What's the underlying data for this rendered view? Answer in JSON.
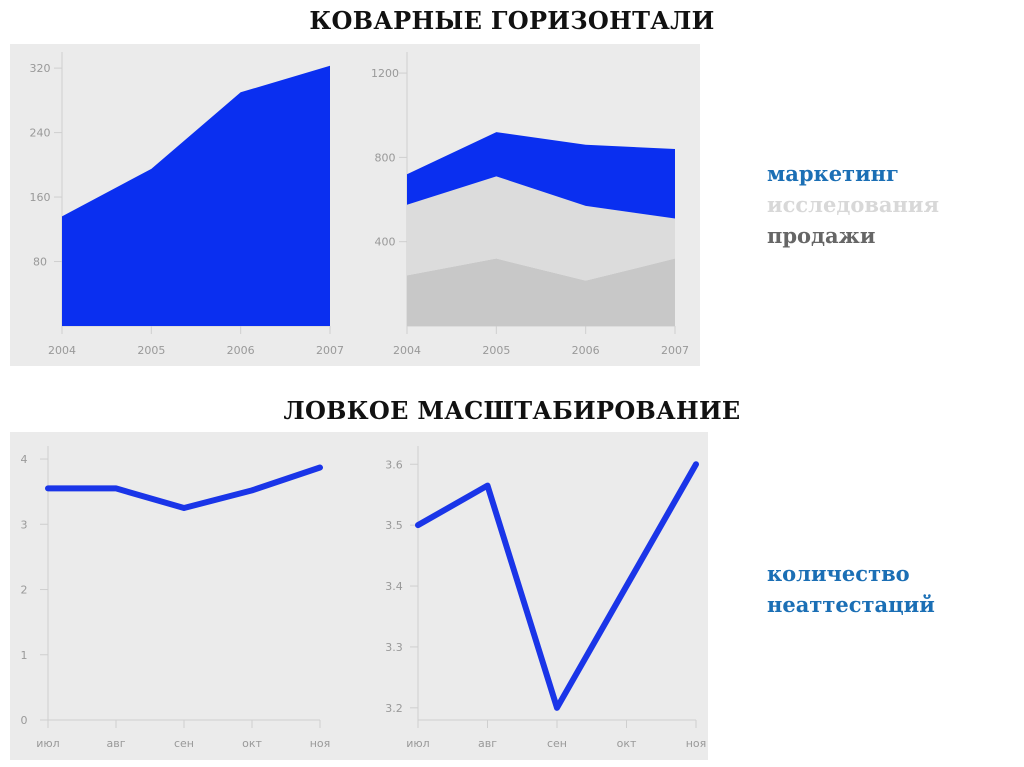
{
  "titles": {
    "top": "КОВАРНЫЕ ГОРИЗОНТАЛИ",
    "bottom": "ЛОВКОЕ МАСШТАБИРОВАНИЕ"
  },
  "legend_top": [
    {
      "label": "маркетинг",
      "color": "#1b6fb5"
    },
    {
      "label": "исследования",
      "color": "#d8d8d8"
    },
    {
      "label": "продажи",
      "color": "#666666"
    }
  ],
  "legend_bottom": [
    {
      "label": "количество",
      "color": "#1b6fb5"
    },
    {
      "label": "неаттестаций",
      "color": "#1b6fb5"
    }
  ],
  "chart_data": [
    {
      "type": "area",
      "categories": [
        "2004",
        "2005",
        "2006",
        "2007"
      ],
      "series": [
        {
          "values": [
            136,
            195,
            290,
            323
          ],
          "color": "#0a2ff0"
        }
      ],
      "ylim": [
        0,
        340
      ],
      "yticks": [
        80,
        160,
        240,
        320
      ],
      "grid": false
    },
    {
      "type": "area",
      "stacked": true,
      "categories": [
        "2004",
        "2005",
        "2006",
        "2007"
      ],
      "series": [
        {
          "name": "продажи",
          "values": [
            240,
            320,
            215,
            320
          ],
          "color": "#c8c8c8"
        },
        {
          "name": "исследования",
          "values": [
            335,
            390,
            355,
            190
          ],
          "color": "#dcdcdc"
        },
        {
          "name": "маркетинг",
          "values": [
            145,
            210,
            290,
            330
          ],
          "color": "#0a2ff0"
        }
      ],
      "ylim": [
        0,
        1300
      ],
      "yticks": [
        400,
        800,
        1200
      ],
      "grid": false
    },
    {
      "type": "line",
      "categories": [
        "июл",
        "авг",
        "сен",
        "окт",
        "ноя"
      ],
      "series": [
        {
          "values": [
            3.55,
            3.55,
            3.25,
            3.52,
            3.87
          ],
          "color": "#1a35e8"
        }
      ],
      "ylim": [
        0,
        4.2
      ],
      "yticks": [
        0,
        1,
        2,
        3,
        4
      ],
      "grid": false
    },
    {
      "type": "line",
      "categories": [
        "июл",
        "авг",
        "сен",
        "окт",
        "ноя"
      ],
      "series": [
        {
          "values": [
            3.5,
            3.565,
            3.2,
            3.4,
            3.6
          ],
          "color": "#1a35e8"
        }
      ],
      "ylim": [
        3.18,
        3.63
      ],
      "yticks": [
        3.2,
        3.3,
        3.4,
        3.5,
        3.6
      ],
      "grid": false
    }
  ]
}
